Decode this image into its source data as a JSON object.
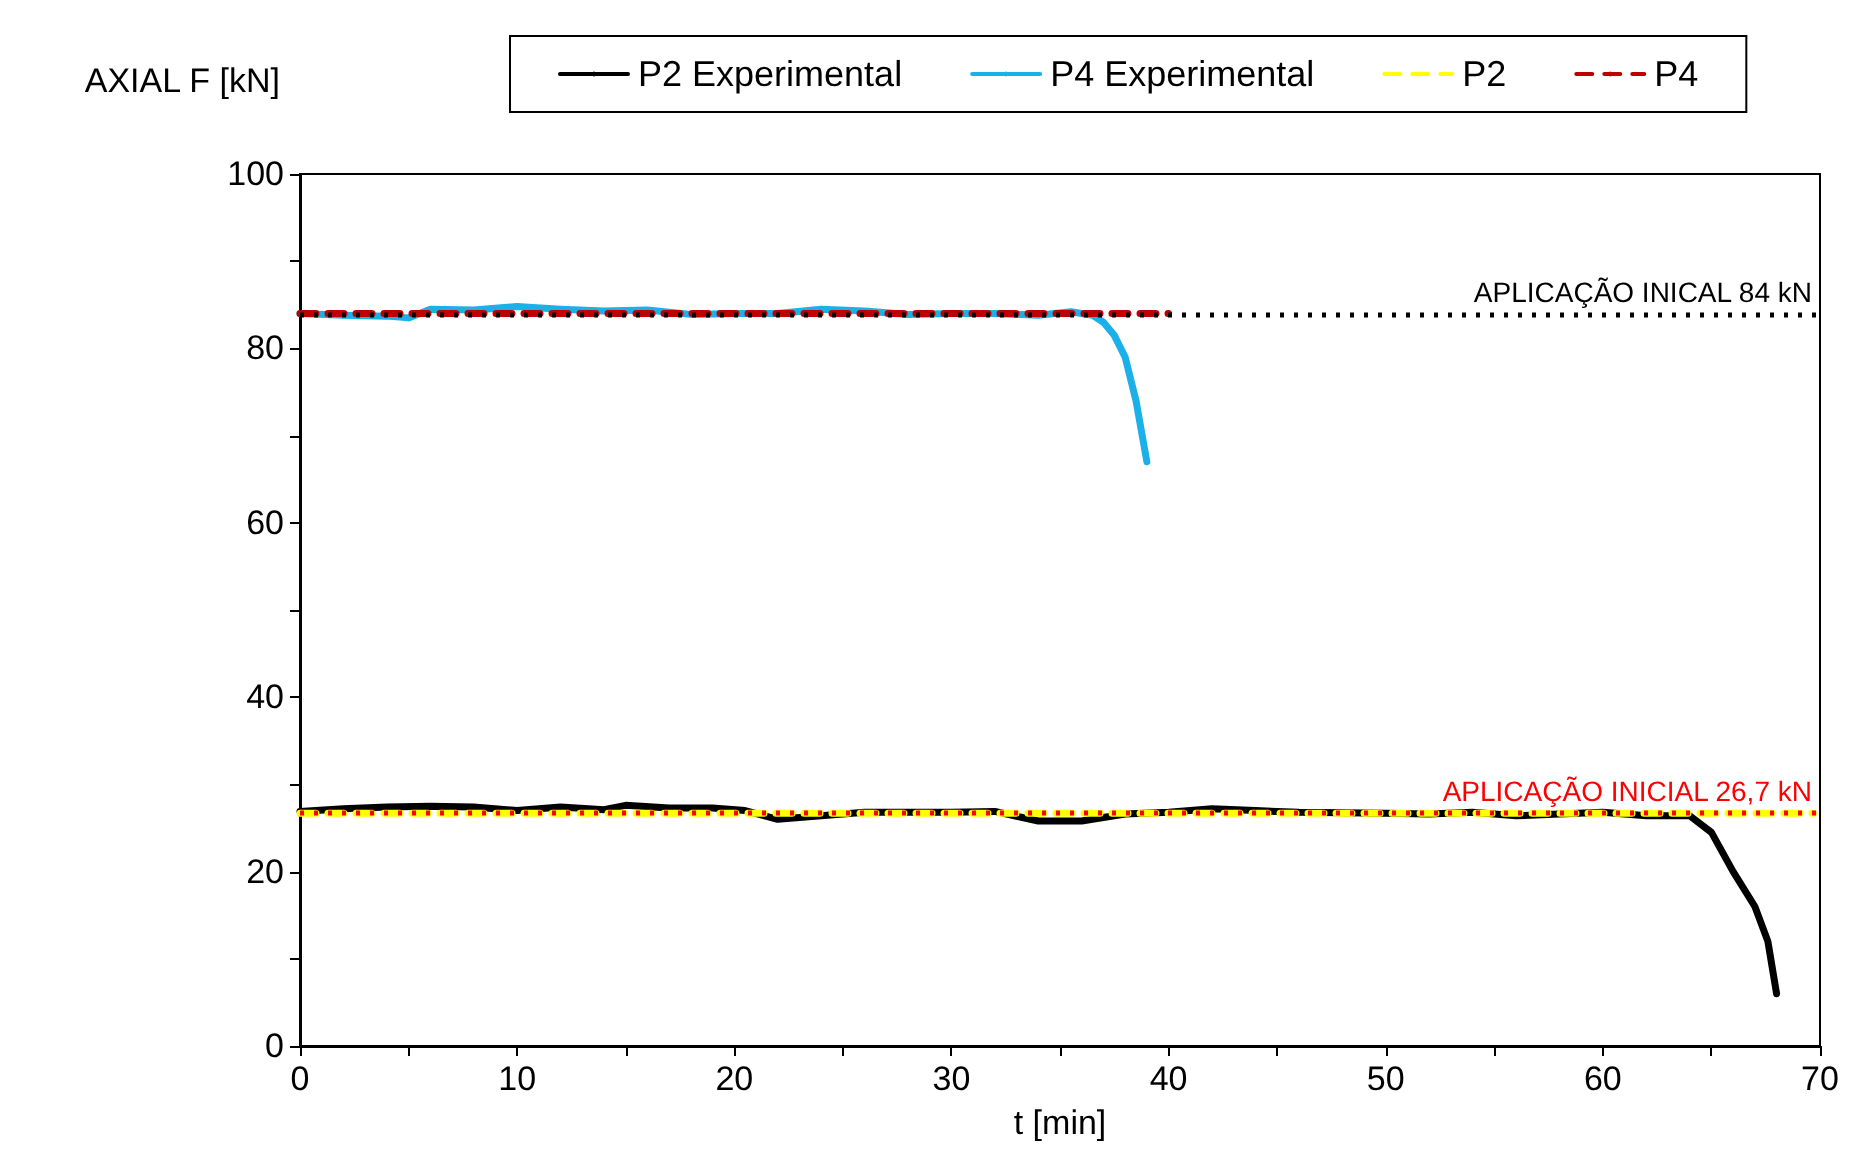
{
  "chart_data": {
    "type": "line",
    "xlabel": "t [min]",
    "ylabel": "AXIAL F [kN]",
    "xlim": [
      0,
      70
    ],
    "xticks": [
      0,
      {
        "value": 5,
        "label": null
      },
      10,
      {
        "value": 15,
        "label": null
      },
      20,
      {
        "value": 25,
        "label": null
      },
      30,
      {
        "value": 35,
        "label": null
      },
      40,
      {
        "value": 45,
        "label": null
      },
      50,
      {
        "value": 55,
        "label": null
      },
      60,
      {
        "value": 65,
        "label": null
      },
      70
    ],
    "ylim": [
      0,
      100
    ],
    "yticks": [
      0,
      {
        "value": 10,
        "label": null
      },
      20,
      {
        "value": 30,
        "label": null
      },
      40,
      {
        "value": 50,
        "label": null
      },
      60,
      {
        "value": 70,
        "label": null
      },
      80,
      {
        "value": 90,
        "label": null
      },
      100
    ],
    "grid": false,
    "legend": "top",
    "marker": "none",
    "series": [
      {
        "name": "P2 Experimental",
        "color": "#000000",
        "line_style": "solid",
        "x": [
          0,
          2,
          4,
          6,
          8,
          10,
          12,
          14,
          15,
          17,
          19,
          20.5,
          22,
          24,
          26,
          28,
          30,
          32,
          34,
          36,
          38,
          40,
          42,
          44,
          46,
          50,
          52,
          54,
          56,
          58,
          60,
          62,
          64,
          65,
          66,
          67,
          67.6,
          68
        ],
        "values": [
          26.9,
          27.2,
          27.4,
          27.5,
          27.4,
          27,
          27.4,
          27.1,
          27.6,
          27.3,
          27.3,
          27,
          26,
          26.4,
          26.8,
          26.8,
          26.8,
          26.9,
          25.8,
          25.8,
          26.6,
          26.8,
          27.2,
          27,
          26.8,
          26.7,
          26.6,
          26.8,
          26.4,
          26.6,
          26.8,
          26.4,
          26.4,
          24.5,
          20,
          16,
          12,
          6
        ]
      },
      {
        "name": "P4 Experimental",
        "color": "#1cb0e8",
        "line_style": "solid",
        "x": [
          0,
          2,
          4,
          5,
          6,
          8,
          10,
          12,
          14,
          16,
          18,
          20,
          22,
          24,
          26,
          28,
          30,
          32,
          34,
          35.5,
          36.5,
          37,
          37.5,
          38,
          38.5,
          39
        ],
        "values": [
          84,
          83.8,
          83.7,
          83.5,
          84.5,
          84.4,
          84.8,
          84.5,
          84.3,
          84.4,
          83.9,
          84,
          84,
          84.5,
          84.3,
          83.9,
          84,
          84,
          83.8,
          84.2,
          83.8,
          83,
          81.5,
          79,
          74,
          67
        ]
      },
      {
        "name": "P2",
        "color": "#ffff00",
        "line_style": "dashed",
        "x": [
          0,
          69.7
        ],
        "values": [
          26.7,
          26.7
        ]
      },
      {
        "name": "P4",
        "color": "#c00000",
        "line_style": "dashed",
        "x": [
          0,
          40
        ],
        "values": [
          84,
          84
        ]
      }
    ],
    "ref_lines": [
      {
        "axis": "y",
        "value": 84,
        "label": "APLICAÇÃO INICAL 84 kN",
        "color": "#000000",
        "line_style": "dotted"
      },
      {
        "axis": "y",
        "value": 26.7,
        "label": "APLICAÇÃO INICIAL 26,7 kN",
        "color": "#ff0000",
        "line_style": "dotted"
      }
    ]
  }
}
